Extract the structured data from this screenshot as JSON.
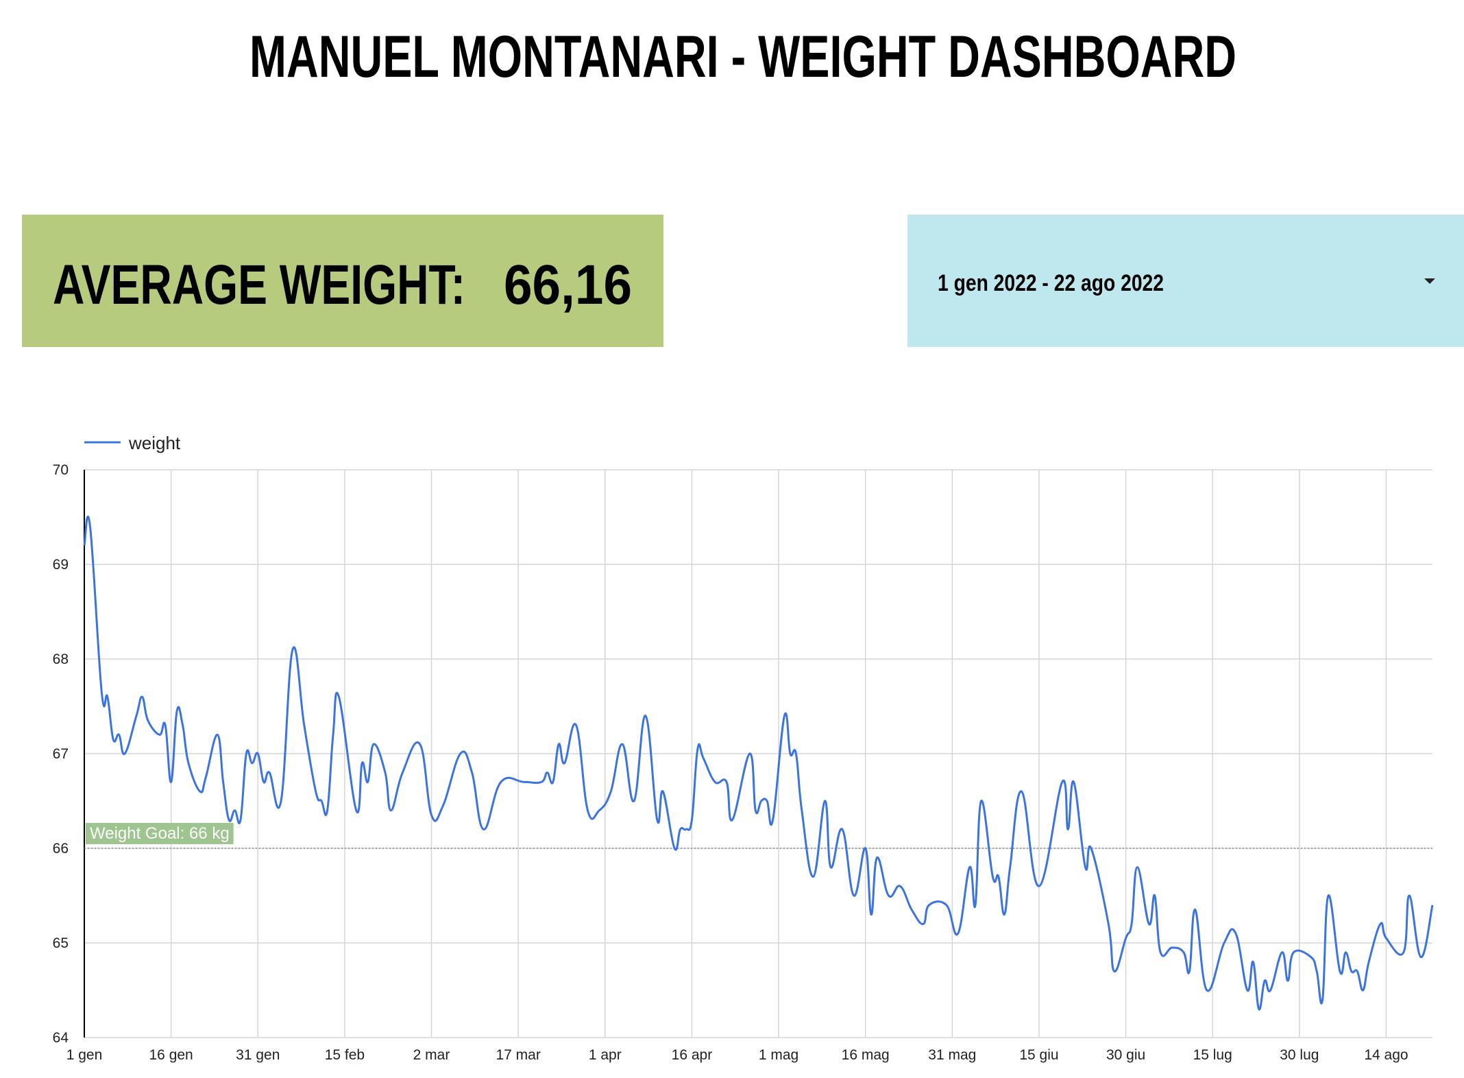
{
  "header": {
    "title": "MANUEL MONTANARI - WEIGHT DASHBOARD",
    "kpi_label": "AVERAGE WEIGHT:",
    "kpi_value": "66,16",
    "date_range": "1 gen 2022 - 22 ago 2022"
  },
  "chart_data": {
    "type": "line",
    "x": [
      0,
      1,
      3,
      4,
      5,
      6,
      7,
      9,
      10,
      11,
      13,
      14,
      15,
      16,
      17,
      18,
      20,
      21,
      23,
      24,
      25,
      26,
      27,
      28,
      29,
      30,
      31,
      32,
      34,
      36,
      38,
      40,
      41,
      42,
      43,
      44,
      47,
      48,
      49,
      50,
      52,
      53,
      55,
      58,
      60,
      62,
      65,
      67,
      69,
      72,
      76,
      79,
      80,
      81,
      82,
      83,
      85,
      87,
      89,
      91,
      93,
      95,
      97,
      99,
      100,
      102,
      103,
      104,
      105,
      106,
      107,
      109,
      111,
      112,
      115,
      116,
      117,
      118,
      119,
      121,
      122,
      123,
      124,
      126,
      128,
      129,
      131,
      133,
      135,
      136,
      137,
      139,
      141,
      143,
      145,
      146,
      149,
      151,
      153,
      154,
      155,
      157,
      158,
      159,
      160,
      162,
      165,
      169,
      170,
      171,
      173,
      174,
      177,
      178,
      180,
      181,
      182,
      184,
      185,
      186,
      188,
      190,
      191,
      192,
      194,
      197,
      199,
      201,
      202,
      203,
      204,
      205,
      207,
      208,
      209,
      212,
      213,
      214,
      215,
      217,
      218,
      219,
      220,
      221,
      222,
      224,
      225,
      228,
      229,
      231,
      233
    ],
    "series": [
      {
        "name": "weight",
        "color": "#3b73e0",
        "values": [
          69.2,
          69.4,
          67.65,
          67.6,
          67.15,
          67.2,
          67.0,
          67.4,
          67.6,
          67.35,
          67.2,
          67.3,
          66.7,
          67.45,
          67.3,
          66.9,
          66.6,
          66.75,
          67.2,
          66.7,
          66.3,
          66.4,
          66.3,
          67.0,
          66.9,
          67.0,
          66.7,
          66.8,
          66.5,
          68.1,
          67.3,
          66.6,
          66.5,
          66.4,
          67.2,
          67.6,
          66.4,
          66.9,
          66.7,
          67.1,
          66.8,
          66.4,
          66.8,
          67.1,
          66.35,
          66.45,
          67.0,
          66.8,
          66.2,
          66.7,
          66.7,
          66.7,
          66.8,
          66.7,
          67.1,
          66.9,
          67.3,
          66.4,
          66.4,
          66.6,
          67.1,
          66.5,
          67.4,
          66.3,
          66.6,
          66.0,
          66.2,
          66.2,
          66.3,
          67.05,
          66.95,
          66.7,
          66.7,
          66.3,
          67.0,
          66.4,
          66.5,
          66.5,
          66.3,
          67.4,
          67.0,
          67.0,
          66.4,
          65.7,
          66.5,
          65.8,
          66.2,
          65.5,
          66.0,
          65.3,
          65.9,
          65.5,
          65.6,
          65.35,
          65.2,
          65.4,
          65.4,
          65.1,
          65.8,
          65.4,
          66.5,
          65.7,
          65.7,
          65.3,
          65.8,
          66.6,
          65.6,
          66.7,
          66.2,
          66.7,
          65.8,
          66.0,
          65.2,
          64.7,
          65.05,
          65.2,
          65.8,
          65.2,
          65.5,
          64.9,
          64.95,
          64.9,
          64.7,
          65.35,
          64.5,
          65.0,
          65.1,
          64.5,
          64.8,
          64.3,
          64.6,
          64.5,
          64.9,
          64.6,
          64.9,
          64.85,
          64.7,
          64.4,
          65.5,
          64.7,
          64.9,
          64.7,
          64.7,
          64.5,
          64.8,
          65.2,
          65.05,
          64.9,
          65.5,
          64.85,
          65.4
        ]
      }
    ],
    "xlim": [
      0,
      233
    ],
    "xticks": [
      {
        "value": 0,
        "label": "1 gen"
      },
      {
        "value": 15,
        "label": "16 gen"
      },
      {
        "value": 30,
        "label": "31 gen"
      },
      {
        "value": 45,
        "label": "15 feb"
      },
      {
        "value": 60,
        "label": "2 mar"
      },
      {
        "value": 75,
        "label": "17 mar"
      },
      {
        "value": 90,
        "label": "1 apr"
      },
      {
        "value": 105,
        "label": "16 apr"
      },
      {
        "value": 120,
        "label": "1 mag"
      },
      {
        "value": 135,
        "label": "16 mag"
      },
      {
        "value": 150,
        "label": "31 mag"
      },
      {
        "value": 165,
        "label": "15 giu"
      },
      {
        "value": 180,
        "label": "30 giu"
      },
      {
        "value": 195,
        "label": "15 lug"
      },
      {
        "value": 210,
        "label": "30 lug"
      },
      {
        "value": 225,
        "label": "14 ago"
      }
    ],
    "ylim": [
      64,
      70
    ],
    "yticks": [
      64,
      65,
      66,
      67,
      68,
      69,
      70
    ],
    "grid": true,
    "reference_line": {
      "value": 66,
      "label": "Weight Goal: 66 kg",
      "color": "#9ec48f"
    }
  }
}
